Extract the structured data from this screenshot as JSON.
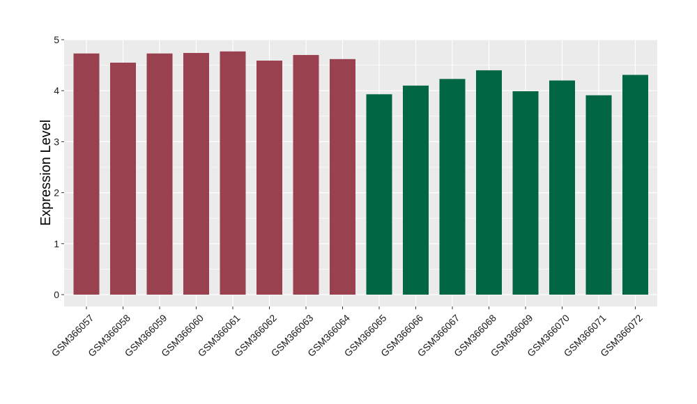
{
  "chart_data": {
    "type": "bar",
    "xlabel": "",
    "ylabel": "Expression Level",
    "ylim": [
      0,
      5
    ],
    "yticks": [
      0,
      1,
      2,
      3,
      4,
      5
    ],
    "grid": true,
    "legend": "none",
    "panel_background": "#ebebeb",
    "gridline_color": "#ffffff",
    "categories": [
      "GSM366057",
      "GSM366058",
      "GSM366059",
      "GSM366060",
      "GSM366061",
      "GSM366062",
      "GSM366063",
      "GSM366064",
      "GSM366065",
      "GSM366066",
      "GSM366067",
      "GSM366068",
      "GSM366069",
      "GSM366070",
      "GSM366071",
      "GSM366072"
    ],
    "values": [
      4.73,
      4.55,
      4.73,
      4.74,
      4.77,
      4.59,
      4.7,
      4.62,
      3.93,
      4.1,
      4.23,
      4.4,
      3.99,
      4.2,
      3.91,
      4.31
    ],
    "bar_colors": [
      "#9a4150",
      "#9a4150",
      "#9a4150",
      "#9a4150",
      "#9a4150",
      "#9a4150",
      "#9a4150",
      "#9a4150",
      "#006644",
      "#006644",
      "#006644",
      "#006644",
      "#006644",
      "#006644",
      "#006644",
      "#006644"
    ]
  }
}
